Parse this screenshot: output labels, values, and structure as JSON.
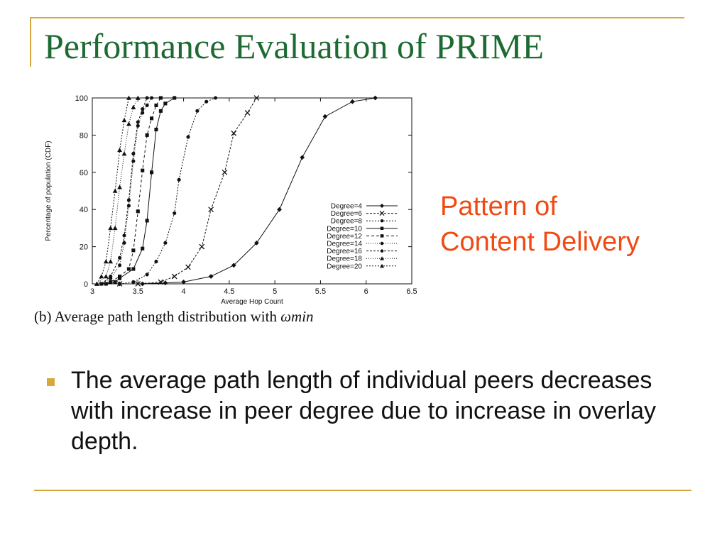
{
  "slide": {
    "title": "Performance Evaluation of PRIME",
    "side_label": [
      "Pattern of",
      "Content Delivery"
    ],
    "bullet_text": "The average path length of individual peers decreases  with increase in peer degree due to increase in overlay depth.",
    "caption_prefix": "(b)  Average  path  length  distribution  with",
    "caption_math": "ωmin",
    "colors": {
      "title": "#1d6b33",
      "accent": "#d6a83d",
      "side_label": "#f04a12"
    }
  },
  "chart_data": {
    "type": "line",
    "xlabel": "Average Hop Count",
    "ylabel": "Percentage of population (CDF)",
    "xlim": [
      3,
      6.5
    ],
    "ylim": [
      0,
      100
    ],
    "xticks": [
      3,
      3.5,
      4,
      4.5,
      5,
      5.5,
      6,
      6.5
    ],
    "xtick_labels": [
      "3",
      "3.5",
      "4",
      "4.5",
      "5",
      "5.5",
      "6",
      "6.5"
    ],
    "yticks": [
      0,
      20,
      40,
      60,
      80,
      100
    ],
    "ytick_labels": [
      "0",
      "20",
      "40",
      "60",
      "80",
      "100"
    ],
    "grid": false,
    "legend_position": "bottom-right",
    "series": [
      {
        "name": "Degree=4",
        "marker": "diamond",
        "dash": "none",
        "x": [
          3.3,
          3.55,
          3.8,
          4.0,
          4.3,
          4.55,
          4.8,
          5.05,
          5.3,
          5.55,
          5.85,
          6.1
        ],
        "y": [
          0,
          0,
          0.5,
          1,
          4,
          10,
          22,
          40,
          68,
          90,
          98,
          100
        ]
      },
      {
        "name": "Degree=6",
        "marker": "x",
        "dash": "3,2",
        "x": [
          3.3,
          3.5,
          3.75,
          3.9,
          4.05,
          4.2,
          4.3,
          4.45,
          4.55,
          4.7,
          4.8
        ],
        "y": [
          0,
          0,
          1,
          4,
          9,
          20,
          40,
          60,
          81,
          92,
          100
        ]
      },
      {
        "name": "Degree=8",
        "marker": "circle",
        "dash": "2,2",
        "x": [
          3.3,
          3.45,
          3.6,
          3.7,
          3.8,
          3.9,
          3.95,
          4.05,
          4.15,
          4.25,
          4.35
        ],
        "y": [
          0,
          1,
          5,
          12,
          22,
          38,
          56,
          79,
          93,
          98,
          100
        ]
      },
      {
        "name": "Degree=10",
        "marker": "square",
        "dash": "none",
        "x": [
          3.15,
          3.25,
          3.3,
          3.45,
          3.55,
          3.6,
          3.65,
          3.7,
          3.75,
          3.8,
          3.9
        ],
        "y": [
          0,
          1,
          3,
          8,
          19,
          34,
          60,
          83,
          93,
          97,
          100
        ]
      },
      {
        "name": "Degree=12",
        "marker": "square",
        "dash": "4,3",
        "x": [
          3.1,
          3.2,
          3.3,
          3.4,
          3.45,
          3.5,
          3.55,
          3.6,
          3.65,
          3.7,
          3.75
        ],
        "y": [
          0,
          1,
          4,
          8,
          18,
          39,
          61,
          80,
          89,
          96,
          100
        ]
      },
      {
        "name": "Degree=14",
        "marker": "circle",
        "dash": "1,2",
        "x": [
          3.1,
          3.2,
          3.3,
          3.35,
          3.4,
          3.45,
          3.5,
          3.55,
          3.6,
          3.65
        ],
        "y": [
          0,
          3,
          10,
          22,
          42,
          66,
          85,
          92,
          96,
          100
        ]
      },
      {
        "name": "Degree=16",
        "marker": "circle",
        "dash": "3,2",
        "x": [
          3.1,
          3.2,
          3.3,
          3.35,
          3.4,
          3.45,
          3.5,
          3.55,
          3.6
        ],
        "y": [
          0,
          4,
          14,
          26,
          45,
          70,
          87,
          94,
          100
        ]
      },
      {
        "name": "Degree=18",
        "marker": "triangle",
        "dash": "1,2",
        "x": [
          3.05,
          3.15,
          3.2,
          3.25,
          3.3,
          3.35,
          3.4,
          3.45,
          3.5
        ],
        "y": [
          0,
          4,
          12,
          30,
          52,
          70,
          86,
          95,
          100
        ]
      },
      {
        "name": "Degree=20",
        "marker": "triangle",
        "dash": "2,2",
        "x": [
          3.05,
          3.1,
          3.15,
          3.2,
          3.25,
          3.3,
          3.35,
          3.4
        ],
        "y": [
          0,
          4,
          12,
          30,
          50,
          72,
          88,
          100
        ]
      }
    ]
  }
}
